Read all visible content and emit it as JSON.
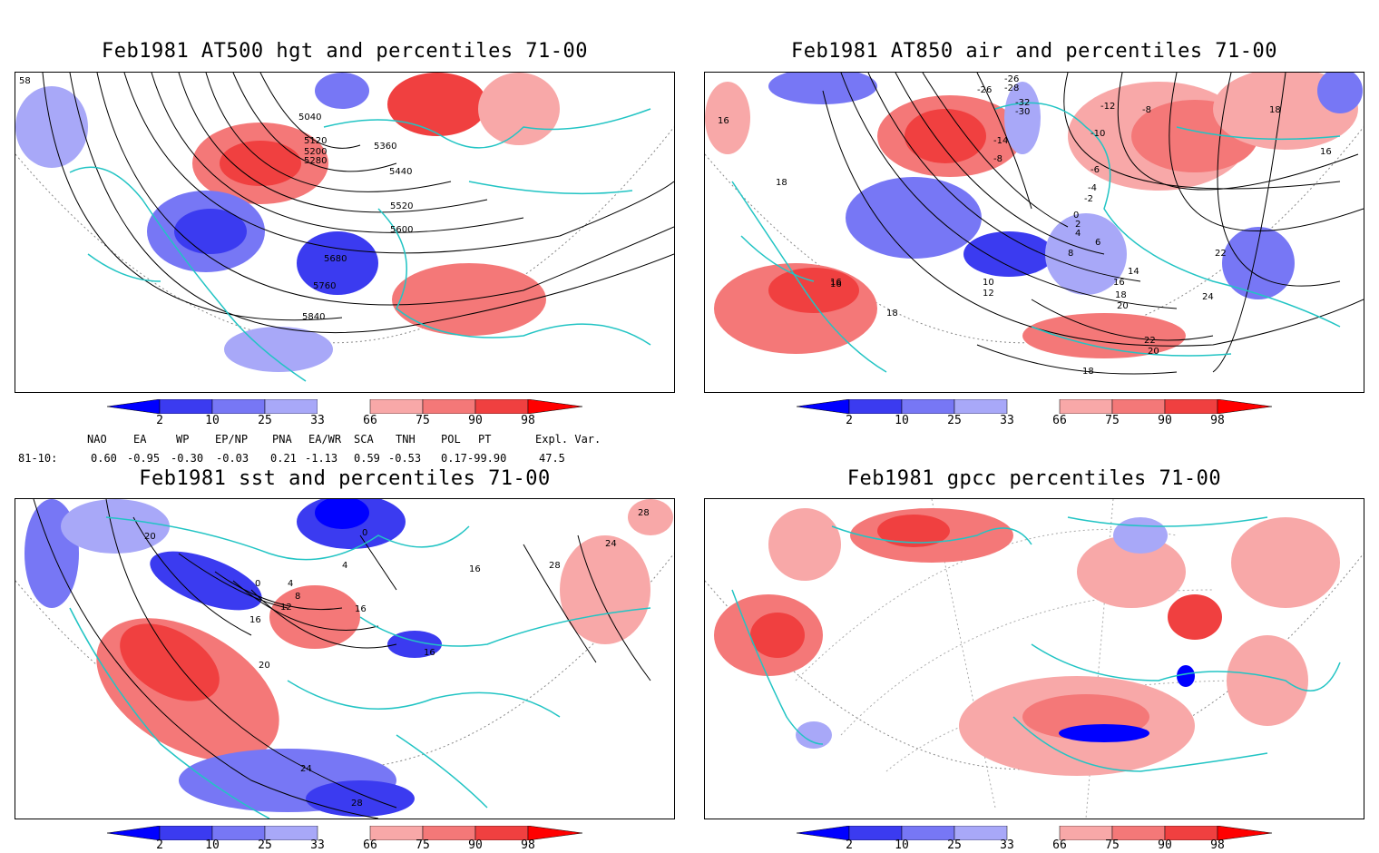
{
  "panels": [
    {
      "id": "p1",
      "title": "Feb1981 AT500 hgt and percentiles 71-00",
      "contour_labels": [
        "5040",
        "5120",
        "5200",
        "5280",
        "5360",
        "5440",
        "5520",
        "5600",
        "5680",
        "5760",
        "5840",
        "58"
      ]
    },
    {
      "id": "p2",
      "title": "Feb1981 AT850 air and percentiles 71-00",
      "contour_labels": [
        "-26",
        "-28",
        "-26",
        "-32",
        "-30",
        "-12",
        "-8",
        "16",
        "18",
        "16",
        "-14",
        "-10",
        "-8",
        "-6",
        "-4",
        "-2",
        "0",
        "18",
        "16",
        "2",
        "4",
        "6",
        "8",
        "10",
        "12",
        "14",
        "16",
        "18",
        "20",
        "22",
        "24",
        "22",
        "20",
        "18",
        "18",
        "16"
      ]
    },
    {
      "id": "p3",
      "title": "Feb1981 sst and percentiles 71-00",
      "contour_labels": [
        "20",
        "0",
        "4",
        "8",
        "12",
        "16",
        "16",
        "20",
        "24",
        "28",
        "24",
        "28",
        "28",
        "0",
        "4",
        "16",
        "16"
      ]
    },
    {
      "id": "p4",
      "title": "Feb1981 gpcc percentiles 71-00",
      "contour_labels": []
    }
  ],
  "colorbar": {
    "labels": [
      "2",
      "10",
      "25",
      "33",
      "66",
      "75",
      "90",
      "98"
    ],
    "colors": {
      "blue_dark": "#0000ff",
      "blue_mid": "#3b3bf0",
      "blue_light": "#7777f5",
      "blue_pale": "#a8a8f8",
      "red_pale": "#f8a8a8",
      "red_light": "#f47878",
      "red_mid": "#f04040",
      "red_dark": "#ff0000"
    }
  },
  "indices": {
    "header": [
      "NAO",
      "EA",
      "WP",
      "EP/NP",
      "PNA",
      "EA/WR",
      "SCA",
      "TNH",
      "POL",
      "PT",
      "Expl. Var."
    ],
    "row_label": "81-10:",
    "values": [
      "0.60",
      "-0.95",
      "-0.30",
      "-0.03",
      "0.21",
      "-1.13",
      "0.59",
      "-0.53",
      "0.17",
      "-99.90",
      "47.5"
    ]
  },
  "map_colors": {
    "coast": "#22c4c4",
    "contour": "#000000",
    "grid": "#888888"
  }
}
